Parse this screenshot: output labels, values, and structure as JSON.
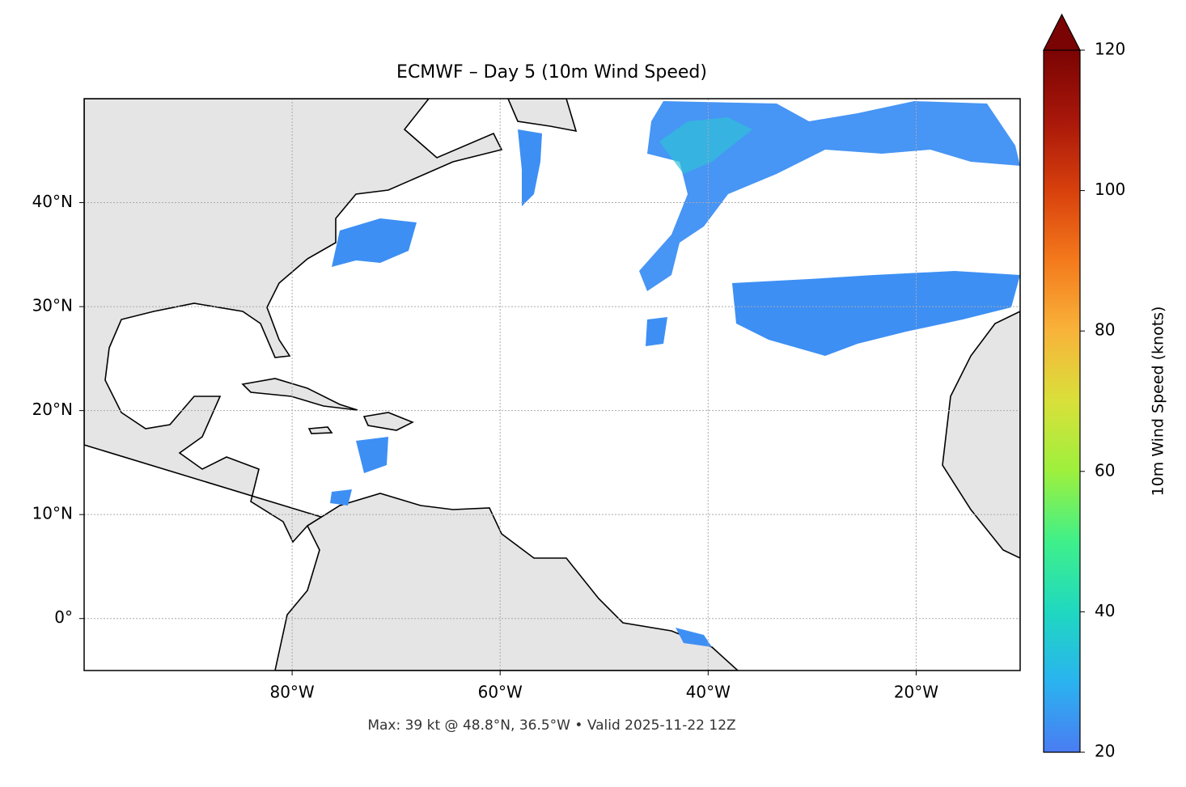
{
  "chart_data": {
    "type": "map",
    "title": "ECMWF – Day 5 (10m Wind Speed)",
    "footer": "Max: 39 kt @ 48.8°N, 36.5°W • Valid 2025-11-22 12Z",
    "xlim": [
      -100,
      -10
    ],
    "ylim": [
      -5,
      50
    ],
    "xticks": [
      {
        "value": -80,
        "label": "80°W"
      },
      {
        "value": -60,
        "label": "60°W"
      },
      {
        "value": -40,
        "label": "40°W"
      },
      {
        "value": -20,
        "label": "20°W"
      }
    ],
    "yticks": [
      {
        "value": 0,
        "label": "0°"
      },
      {
        "value": 10,
        "label": "10°N"
      },
      {
        "value": 20,
        "label": "20°N"
      },
      {
        "value": 30,
        "label": "30°N"
      },
      {
        "value": 40,
        "label": "40°N"
      }
    ],
    "grid": true,
    "colorbar": {
      "label": "10m Wind Speed (knots)",
      "lim": [
        20,
        120
      ],
      "ticks": [
        20,
        40,
        60,
        80,
        100,
        120
      ],
      "colormap": "turbo",
      "extend": "max"
    }
  }
}
